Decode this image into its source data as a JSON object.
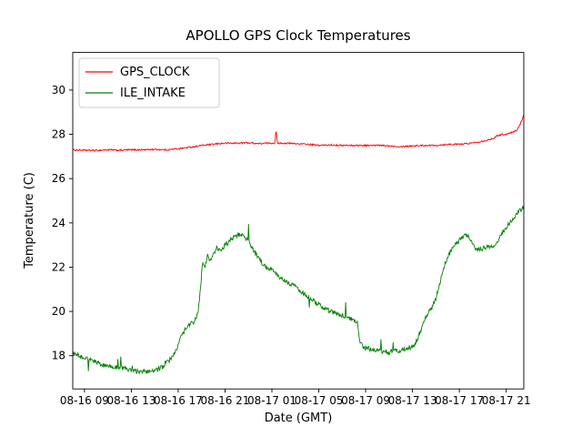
{
  "chart_data": {
    "type": "line",
    "title": "APOLLO GPS Clock Temperatures",
    "xlabel": "Date (GMT)",
    "ylabel": "Temperature (C)",
    "xlim": [
      0,
      38.5
    ],
    "ylim": [
      16.5,
      31.7
    ],
    "grid": false,
    "legend_position": "upper left",
    "y_ticks": [
      18,
      20,
      22,
      24,
      26,
      28,
      30
    ],
    "x_ticks": [
      {
        "t": 1,
        "label": "08-16 09"
      },
      {
        "t": 5,
        "label": "08-16 13"
      },
      {
        "t": 9,
        "label": "08-16 17"
      },
      {
        "t": 13,
        "label": "08-16 21"
      },
      {
        "t": 17,
        "label": "08-17 01"
      },
      {
        "t": 21,
        "label": "08-17 05"
      },
      {
        "t": 25,
        "label": "08-17 09"
      },
      {
        "t": 29,
        "label": "08-17 13"
      },
      {
        "t": 33,
        "label": "08-17 17"
      },
      {
        "t": 37,
        "label": "08-17 21"
      }
    ],
    "series": [
      {
        "name": "GPS_CLOCK",
        "color": "#ff0000",
        "noise": 0.035,
        "spike_chance": 0.0,
        "keypoints": [
          [
            0,
            27.3
          ],
          [
            1,
            27.28
          ],
          [
            2,
            27.27
          ],
          [
            3,
            27.3
          ],
          [
            4,
            27.28
          ],
          [
            5,
            27.3
          ],
          [
            6,
            27.3
          ],
          [
            7,
            27.32
          ],
          [
            8,
            27.3
          ],
          [
            9,
            27.35
          ],
          [
            9.5,
            27.38
          ],
          [
            10,
            27.42
          ],
          [
            10.5,
            27.45
          ],
          [
            11,
            27.5
          ],
          [
            11.5,
            27.52
          ],
          [
            12,
            27.55
          ],
          [
            12.5,
            27.58
          ],
          [
            13,
            27.6
          ],
          [
            14,
            27.6
          ],
          [
            15,
            27.62
          ],
          [
            15.5,
            27.6
          ],
          [
            16,
            27.58
          ],
          [
            16.5,
            27.6
          ],
          [
            17,
            27.6
          ],
          [
            17.25,
            27.6
          ],
          [
            17.35,
            28.25
          ],
          [
            17.45,
            27.6
          ],
          [
            18,
            27.6
          ],
          [
            19,
            27.58
          ],
          [
            20,
            27.55
          ],
          [
            21,
            27.5
          ],
          [
            22,
            27.52
          ],
          [
            23,
            27.5
          ],
          [
            24,
            27.5
          ],
          [
            25,
            27.5
          ],
          [
            26,
            27.5
          ],
          [
            27,
            27.48
          ],
          [
            28,
            27.45
          ],
          [
            29,
            27.48
          ],
          [
            30,
            27.5
          ],
          [
            31,
            27.5
          ],
          [
            32,
            27.55
          ],
          [
            33,
            27.55
          ],
          [
            34,
            27.6
          ],
          [
            34.5,
            27.65
          ],
          [
            35,
            27.7
          ],
          [
            35.5,
            27.75
          ],
          [
            36,
            27.85
          ],
          [
            36.3,
            27.95
          ],
          [
            36.6,
            28.0
          ],
          [
            37,
            28.0
          ],
          [
            37.3,
            28.05
          ],
          [
            37.6,
            28.1
          ],
          [
            37.9,
            28.2
          ],
          [
            38.1,
            28.35
          ],
          [
            38.3,
            28.6
          ],
          [
            38.5,
            28.9
          ]
        ]
      },
      {
        "name": "ILE_INTAKE",
        "color": "#008000",
        "noise": 0.11,
        "spike_chance": 0.012,
        "keypoints": [
          [
            0,
            18.1
          ],
          [
            0.5,
            18.0
          ],
          [
            1,
            17.9
          ],
          [
            1.5,
            17.8
          ],
          [
            2,
            17.7
          ],
          [
            2.5,
            17.6
          ],
          [
            3,
            17.55
          ],
          [
            3.5,
            17.5
          ],
          [
            4,
            17.45
          ],
          [
            4.5,
            17.4
          ],
          [
            5,
            17.35
          ],
          [
            5.5,
            17.3
          ],
          [
            6,
            17.28
          ],
          [
            6.5,
            17.25
          ],
          [
            7,
            17.3
          ],
          [
            7.5,
            17.45
          ],
          [
            8,
            17.65
          ],
          [
            8.5,
            17.95
          ],
          [
            9,
            18.5
          ],
          [
            9.3,
            18.9
          ],
          [
            9.6,
            19.2
          ],
          [
            10,
            19.45
          ],
          [
            10.4,
            19.55
          ],
          [
            10.7,
            20.0
          ],
          [
            10.9,
            21.0
          ],
          [
            11.1,
            22.3
          ],
          [
            11.3,
            22.0
          ],
          [
            11.5,
            22.5
          ],
          [
            11.8,
            22.3
          ],
          [
            12,
            22.6
          ],
          [
            12.3,
            22.9
          ],
          [
            12.6,
            22.7
          ],
          [
            13,
            23.0
          ],
          [
            13.3,
            23.1
          ],
          [
            13.6,
            23.3
          ],
          [
            14,
            23.45
          ],
          [
            14.3,
            23.5
          ],
          [
            14.6,
            23.4
          ],
          [
            15,
            23.2
          ],
          [
            15.3,
            22.9
          ],
          [
            15.6,
            22.6
          ],
          [
            16,
            22.3
          ],
          [
            16.3,
            22.1
          ],
          [
            16.6,
            22.0
          ],
          [
            17,
            21.9
          ],
          [
            17.5,
            21.6
          ],
          [
            18,
            21.4
          ],
          [
            18.5,
            21.25
          ],
          [
            19,
            21.1
          ],
          [
            19.5,
            20.9
          ],
          [
            20,
            20.7
          ],
          [
            20.5,
            20.5
          ],
          [
            21,
            20.3
          ],
          [
            21.5,
            20.15
          ],
          [
            22,
            20.0
          ],
          [
            22.5,
            19.9
          ],
          [
            23,
            19.8
          ],
          [
            23.5,
            19.7
          ],
          [
            24,
            19.6
          ],
          [
            24.3,
            19.5
          ],
          [
            24.5,
            18.7
          ],
          [
            24.7,
            18.45
          ],
          [
            25,
            18.35
          ],
          [
            25.5,
            18.3
          ],
          [
            26,
            18.25
          ],
          [
            26.5,
            18.2
          ],
          [
            27,
            18.15
          ],
          [
            27.5,
            18.2
          ],
          [
            28,
            18.25
          ],
          [
            28.3,
            18.3
          ],
          [
            28.6,
            18.35
          ],
          [
            29,
            18.4
          ],
          [
            29.3,
            18.6
          ],
          [
            29.6,
            19.0
          ],
          [
            30,
            19.6
          ],
          [
            30.3,
            19.9
          ],
          [
            30.6,
            20.1
          ],
          [
            31,
            20.6
          ],
          [
            31.3,
            21.2
          ],
          [
            31.6,
            21.9
          ],
          [
            32,
            22.4
          ],
          [
            32.3,
            22.8
          ],
          [
            32.6,
            23.0
          ],
          [
            33,
            23.2
          ],
          [
            33.3,
            23.4
          ],
          [
            33.6,
            23.5
          ],
          [
            34,
            23.2
          ],
          [
            34.3,
            22.9
          ],
          [
            34.6,
            22.8
          ],
          [
            35,
            22.85
          ],
          [
            35.5,
            22.9
          ],
          [
            36,
            23.0
          ],
          [
            36.3,
            23.2
          ],
          [
            36.6,
            23.5
          ],
          [
            37,
            23.8
          ],
          [
            37.3,
            24.0
          ],
          [
            37.6,
            24.2
          ],
          [
            37.9,
            24.4
          ],
          [
            38.2,
            24.6
          ],
          [
            38.5,
            24.7
          ]
        ]
      }
    ]
  }
}
